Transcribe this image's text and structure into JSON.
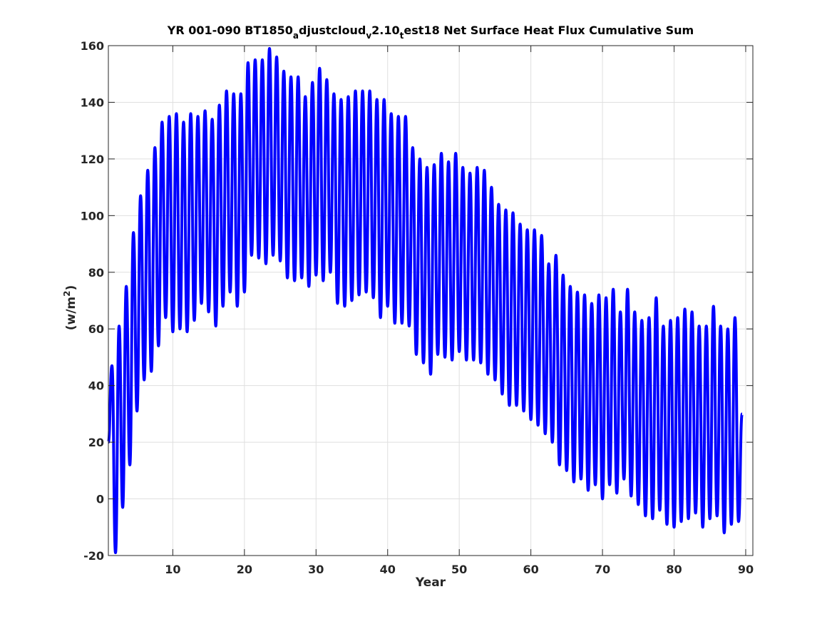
{
  "chart_data": {
    "type": "line",
    "title_parts": [
      {
        "text": "YR 001-090 BT1850",
        "sub": false
      },
      {
        "text": "a",
        "sub": true
      },
      {
        "text": "djustcloud",
        "sub": false
      },
      {
        "text": "v",
        "sub": true
      },
      {
        "text": "2.10",
        "sub": false
      },
      {
        "text": "t",
        "sub": true
      },
      {
        "text": "est18 Net Surface Heat Flux  Cumulative Sum",
        "sub": false
      }
    ],
    "xlabel": "Year",
    "ylabel_main": "(w/m",
    "ylabel_sup": "2",
    "ylabel_end": ")",
    "xlim": [
      1,
      91
    ],
    "ylim": [
      -20,
      160
    ],
    "xticks": [
      10,
      20,
      30,
      40,
      50,
      60,
      70,
      80,
      90
    ],
    "yticks": [
      -20,
      0,
      20,
      40,
      60,
      80,
      100,
      120,
      140,
      160
    ],
    "grid": true,
    "line_color": "#0000ff",
    "series": [
      {
        "x_start": 1.0,
        "x_step": 0.5,
        "values": [
          20,
          47,
          -19,
          61,
          -3,
          75,
          12,
          94,
          31,
          107,
          42,
          116,
          45,
          124,
          54,
          133,
          64,
          135,
          59,
          136,
          60,
          133,
          59,
          136,
          63,
          135,
          69,
          137,
          66,
          134,
          61,
          139,
          68,
          144,
          73,
          143,
          68,
          143,
          73,
          154,
          86,
          155,
          85,
          155,
          83,
          159,
          86,
          156,
          84,
          151,
          78,
          149,
          77,
          149,
          78,
          142,
          75,
          147,
          79,
          152,
          77,
          148,
          80,
          143,
          69,
          141,
          68,
          142,
          70,
          144,
          72,
          144,
          73,
          144,
          71,
          141,
          64,
          141,
          68,
          136,
          62,
          135,
          62,
          135,
          61,
          124,
          51,
          120,
          48,
          117,
          44,
          118,
          51,
          122,
          50,
          119,
          49,
          122,
          52,
          117,
          49,
          115,
          49,
          117,
          48,
          116,
          44,
          110,
          42,
          104,
          37,
          102,
          33,
          101,
          33,
          97,
          31,
          95,
          28,
          95,
          26,
          93,
          23,
          83,
          20,
          86,
          12,
          79,
          10,
          75,
          6,
          73,
          7,
          72,
          3,
          69,
          5,
          72,
          0,
          71,
          5,
          74,
          2,
          66,
          7,
          74,
          1,
          66,
          -2,
          63,
          -6,
          64,
          -7,
          71,
          -4,
          61,
          -9,
          63,
          -10,
          64,
          -8,
          67,
          -7,
          66,
          -5,
          61,
          -10,
          61,
          -7,
          68,
          -6,
          61,
          -12,
          60,
          -9,
          64,
          -8,
          30
        ]
      }
    ]
  }
}
